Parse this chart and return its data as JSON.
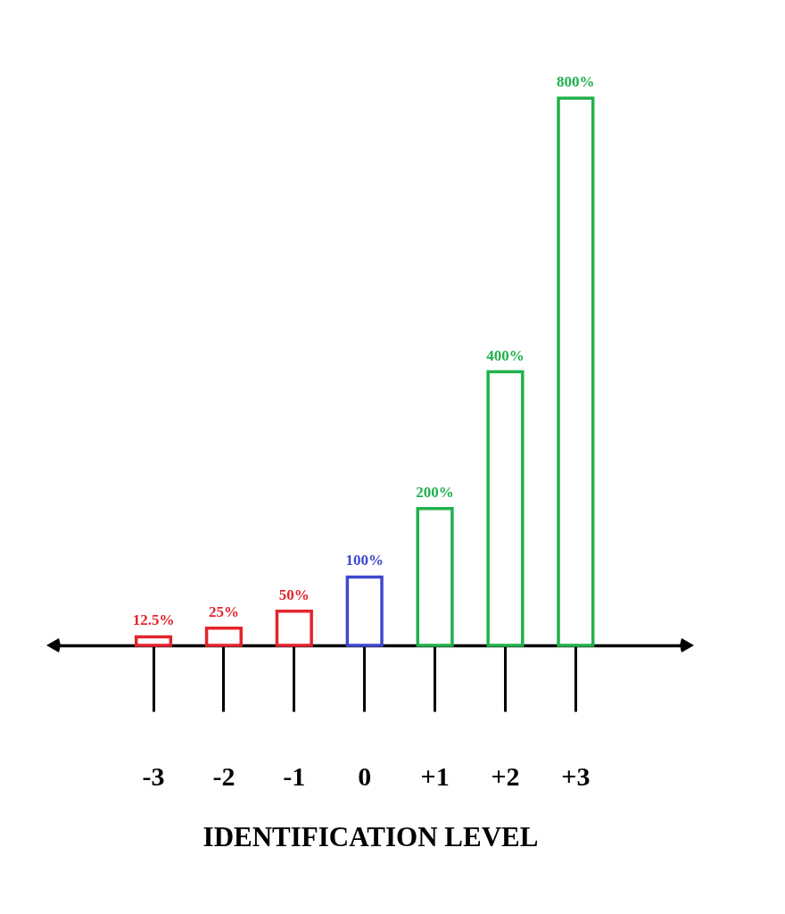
{
  "chart_data": {
    "type": "bar",
    "xlabel": "IDENTIFICATION LEVEL",
    "categories": [
      "-3",
      "-2",
      "-1",
      "0",
      "+1",
      "+2",
      "+3"
    ],
    "values": [
      12.5,
      25,
      50,
      100,
      200,
      400,
      800
    ],
    "colors": [
      "#e3242b",
      "#e3242b",
      "#e3242b",
      "#3f48cc",
      "#22b14c",
      "#22b14c",
      "#22b14c"
    ],
    "value_labels": [
      "12.5%",
      "25%",
      "50%",
      "100%",
      "200%",
      "400%",
      "800%"
    ]
  }
}
